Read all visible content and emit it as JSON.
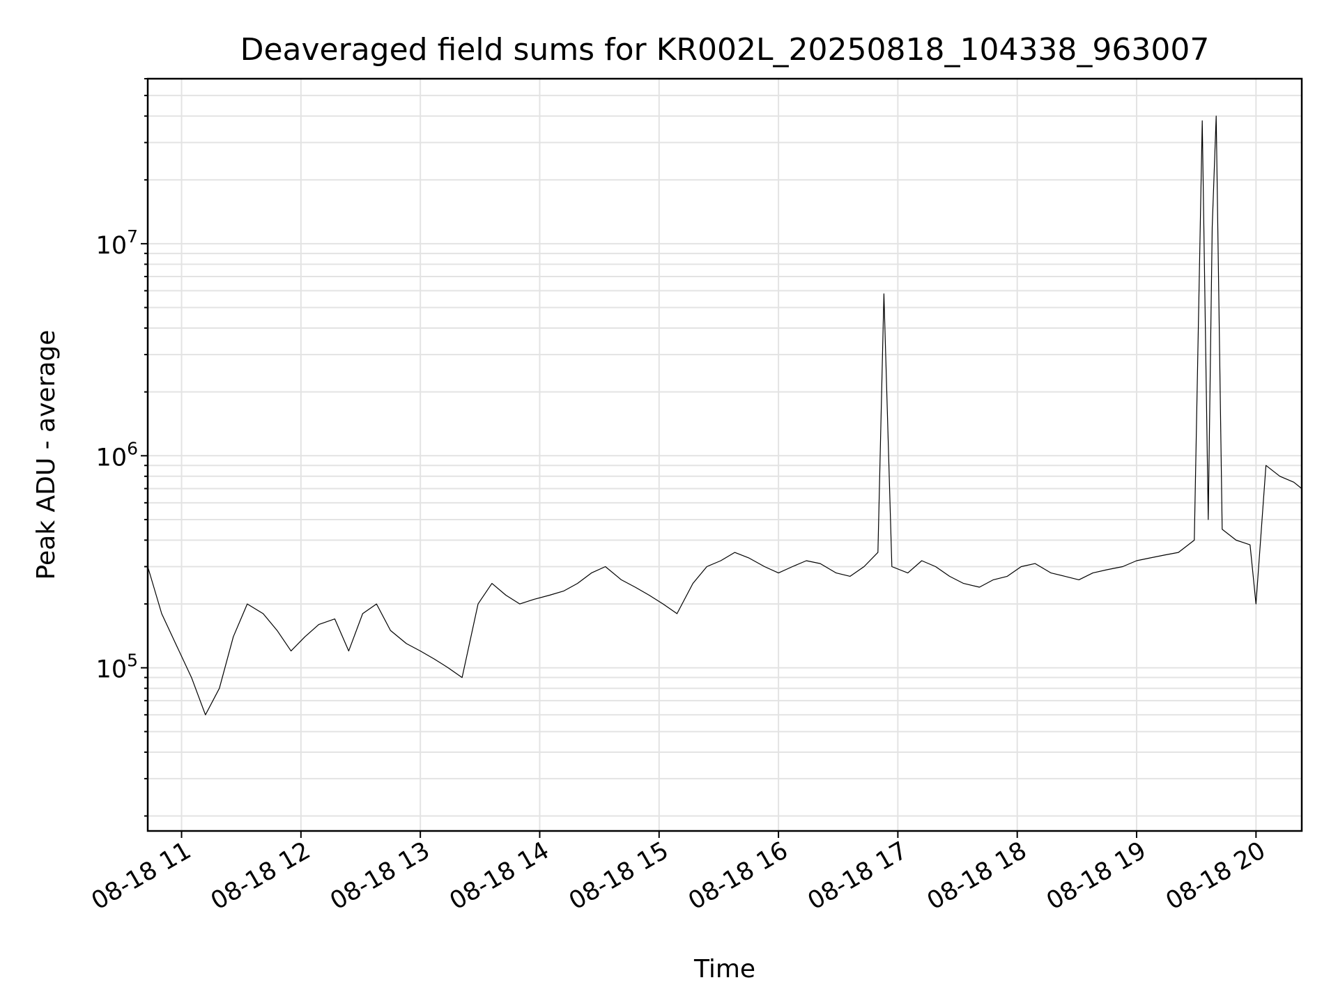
{
  "chart_data": {
    "type": "line",
    "title": "Deaveraged field sums for KR002L_20250818_104338_963007",
    "xlabel": "Time",
    "ylabel": "Peak ADU - average",
    "yscale": "log",
    "xlim": [
      "2025-08-18 10:43",
      "2025-08-18 20:23"
    ],
    "ylim": [
      17000,
      60000000
    ],
    "grid": true,
    "x_ticks": [
      "08-18 11",
      "08-18 12",
      "08-18 13",
      "08-18 14",
      "08-18 15",
      "08-18 16",
      "08-18 17",
      "08-18 18",
      "08-18 19",
      "08-18 20"
    ],
    "y_ticks": [
      {
        "value": 100000,
        "base": "10",
        "exp": "5"
      },
      {
        "value": 1000000,
        "base": "10",
        "exp": "6"
      },
      {
        "value": 10000000,
        "base": "10",
        "exp": "7"
      }
    ],
    "series": [
      {
        "color": "#000000",
        "x": [
          "10:43",
          "10:50",
          "10:57",
          "11:05",
          "11:12",
          "11:19",
          "11:26",
          "11:33",
          "11:41",
          "11:48",
          "11:55",
          "12:02",
          "12:09",
          "12:17",
          "12:24",
          "12:31",
          "12:38",
          "12:45",
          "12:53",
          "13:00",
          "13:07",
          "13:14",
          "13:21",
          "13:29",
          "13:36",
          "13:43",
          "13:50",
          "13:57",
          "14:05",
          "14:12",
          "14:19",
          "14:26",
          "14:33",
          "14:41",
          "14:48",
          "14:55",
          "15:02",
          "15:09",
          "15:17",
          "15:24",
          "15:31",
          "15:38",
          "15:45",
          "15:53",
          "16:00",
          "16:07",
          "16:14",
          "16:21",
          "16:29",
          "16:36",
          "16:43",
          "16:50",
          "16:53",
          "16:57",
          "17:05",
          "17:12",
          "17:19",
          "17:26",
          "17:33",
          "17:41",
          "17:48",
          "17:55",
          "18:02",
          "18:09",
          "18:17",
          "18:24",
          "18:31",
          "18:38",
          "18:45",
          "18:53",
          "19:00",
          "19:07",
          "19:14",
          "19:21",
          "19:29",
          "19:33",
          "19:36",
          "19:38",
          "19:40",
          "19:43",
          "19:50",
          "19:57",
          "20:00",
          "20:05",
          "20:12",
          "20:19",
          "20:23"
        ],
        "y": [
          300000,
          180000,
          130000,
          90000,
          60000,
          80000,
          140000,
          200000,
          180000,
          150000,
          120000,
          140000,
          160000,
          170000,
          120000,
          180000,
          200000,
          150000,
          130000,
          120000,
          110000,
          100000,
          90000,
          200000,
          250000,
          220000,
          200000,
          210000,
          220000,
          230000,
          250000,
          280000,
          300000,
          260000,
          240000,
          220000,
          200000,
          180000,
          250000,
          300000,
          320000,
          350000,
          330000,
          300000,
          280000,
          300000,
          320000,
          310000,
          280000,
          270000,
          300000,
          350000,
          5800000,
          300000,
          280000,
          320000,
          300000,
          270000,
          250000,
          240000,
          260000,
          270000,
          300000,
          310000,
          280000,
          270000,
          260000,
          280000,
          290000,
          300000,
          320000,
          330000,
          340000,
          350000,
          400000,
          38000000,
          500000,
          12000000,
          40000000,
          450000,
          400000,
          380000,
          200000,
          900000,
          800000,
          750000,
          700000
        ]
      }
    ]
  }
}
